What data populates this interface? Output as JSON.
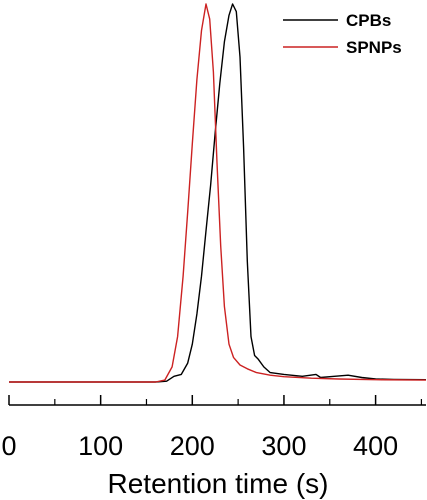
{
  "chart_data": {
    "type": "line",
    "title": "",
    "xlabel": "Retention time (s)",
    "ylabel": "",
    "xlim": [
      0,
      455
    ],
    "ylim": [
      0,
      1
    ],
    "x_ticks": [
      0,
      100,
      200,
      300,
      400
    ],
    "x_minor_ticks": [
      50,
      150,
      250,
      350,
      450
    ],
    "grid": false,
    "legend_position": "top-right",
    "series": [
      {
        "name": "CPBs",
        "color": "#000000",
        "points": [
          [
            0,
            0.0
          ],
          [
            100,
            0.0
          ],
          [
            160,
            0.0
          ],
          [
            172,
            0.002
          ],
          [
            180,
            0.015
          ],
          [
            188,
            0.02
          ],
          [
            195,
            0.05
          ],
          [
            200,
            0.1
          ],
          [
            205,
            0.18
          ],
          [
            210,
            0.28
          ],
          [
            215,
            0.4
          ],
          [
            220,
            0.52
          ],
          [
            225,
            0.66
          ],
          [
            230,
            0.79
          ],
          [
            235,
            0.9
          ],
          [
            240,
            0.97
          ],
          [
            244,
            1.0
          ],
          [
            248,
            0.98
          ],
          [
            252,
            0.86
          ],
          [
            256,
            0.62
          ],
          [
            260,
            0.32
          ],
          [
            264,
            0.12
          ],
          [
            268,
            0.07
          ],
          [
            272,
            0.06
          ],
          [
            278,
            0.04
          ],
          [
            285,
            0.025
          ],
          [
            300,
            0.02
          ],
          [
            320,
            0.015
          ],
          [
            335,
            0.02
          ],
          [
            340,
            0.012
          ],
          [
            355,
            0.015
          ],
          [
            370,
            0.018
          ],
          [
            385,
            0.012
          ],
          [
            400,
            0.008
          ],
          [
            420,
            0.007
          ],
          [
            455,
            0.006
          ]
        ]
      },
      {
        "name": "SPNPs",
        "color": "#cc2222",
        "points": [
          [
            0,
            0.0
          ],
          [
            100,
            0.0
          ],
          [
            160,
            0.0
          ],
          [
            170,
            0.005
          ],
          [
            178,
            0.04
          ],
          [
            184,
            0.12
          ],
          [
            190,
            0.28
          ],
          [
            195,
            0.45
          ],
          [
            200,
            0.63
          ],
          [
            205,
            0.8
          ],
          [
            210,
            0.93
          ],
          [
            215,
            1.0
          ],
          [
            219,
            0.96
          ],
          [
            223,
            0.82
          ],
          [
            227,
            0.58
          ],
          [
            231,
            0.36
          ],
          [
            235,
            0.2
          ],
          [
            240,
            0.1
          ],
          [
            245,
            0.065
          ],
          [
            252,
            0.045
          ],
          [
            260,
            0.035
          ],
          [
            270,
            0.025
          ],
          [
            285,
            0.018
          ],
          [
            300,
            0.014
          ],
          [
            330,
            0.01
          ],
          [
            360,
            0.008
          ],
          [
            400,
            0.006
          ],
          [
            455,
            0.005
          ]
        ]
      }
    ]
  }
}
